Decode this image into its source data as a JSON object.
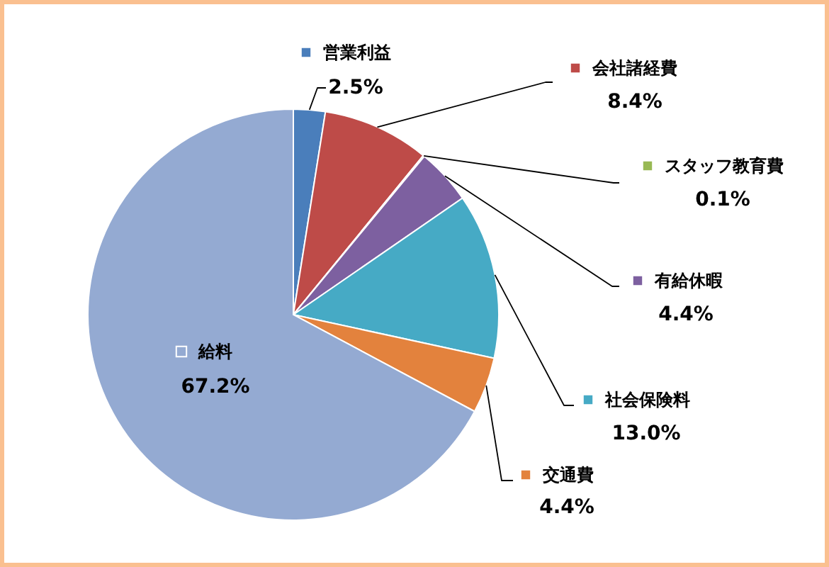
{
  "chart_data": {
    "type": "pie",
    "categories": [
      "営業利益",
      "会社諸経費",
      "スタッフ教育費",
      "有給休暇",
      "社会保険料",
      "交通費",
      "給料"
    ],
    "values": [
      2.5,
      8.4,
      0.1,
      4.4,
      13.0,
      4.4,
      67.2
    ],
    "colors": [
      "#4a7ebb",
      "#be4b48",
      "#98b954",
      "#7d60a0",
      "#46aac5",
      "#e3823d",
      "#94aad2"
    ],
    "value_labels": [
      "2.5%",
      "8.4%",
      "0.1%",
      "4.4%",
      "13.0%",
      "4.4%",
      "67.2%"
    ],
    "legend": "right"
  }
}
